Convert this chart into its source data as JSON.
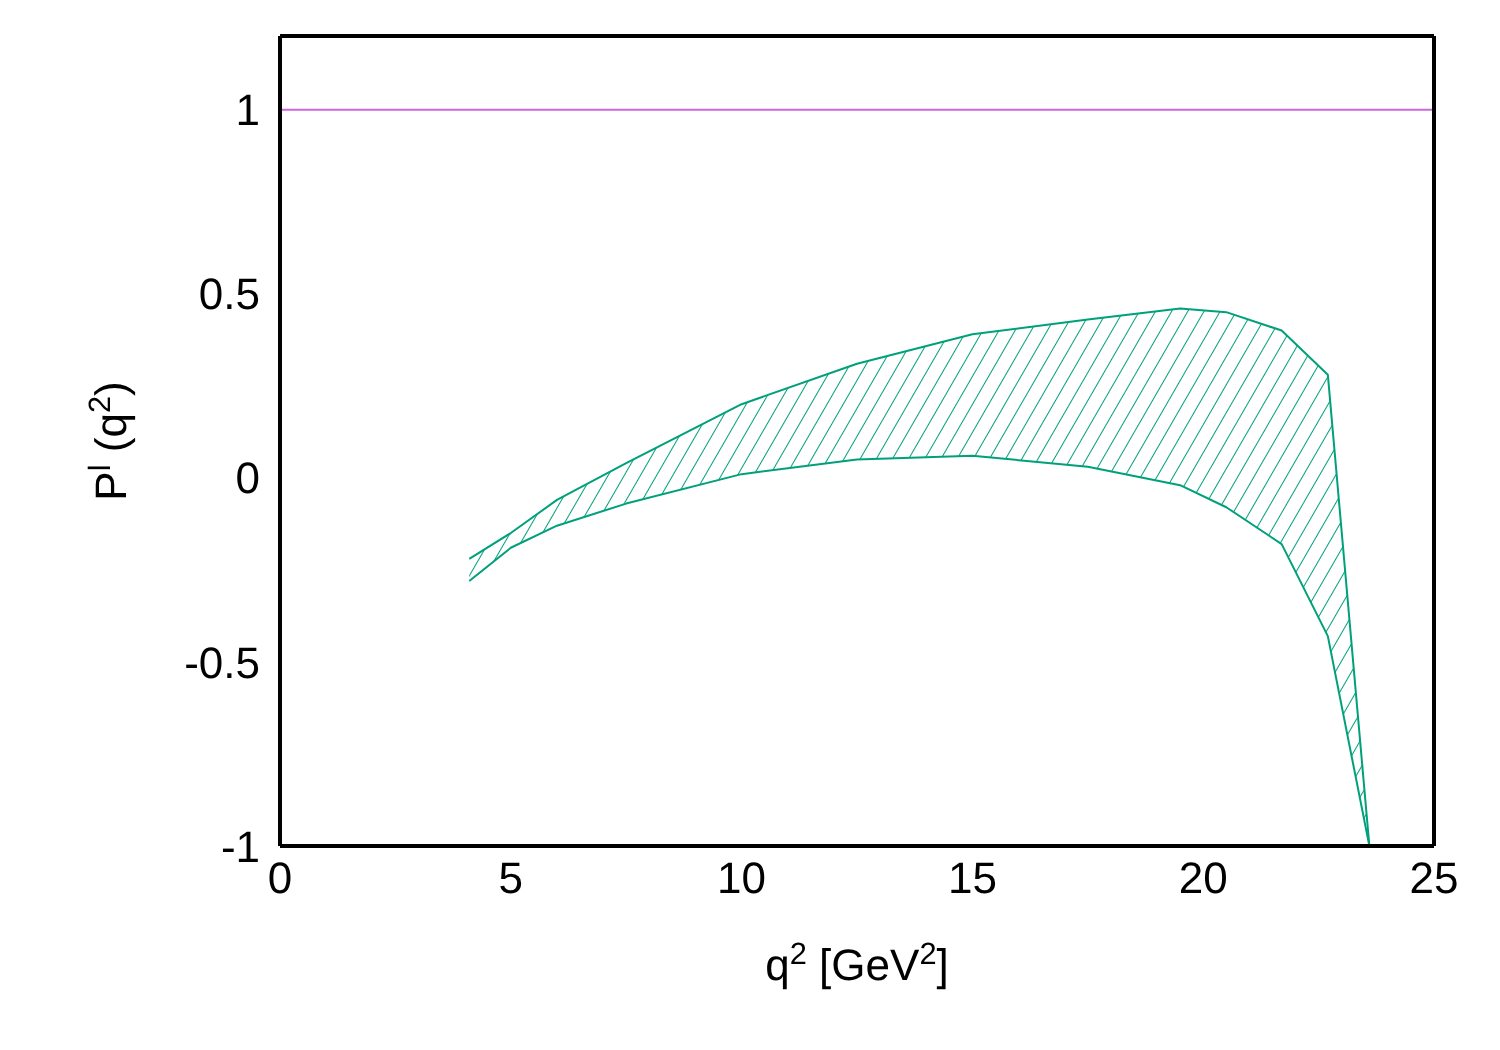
{
  "chart_data": {
    "type": "line",
    "xlabel": "q$^{2}$ [GeV$^{2}$]",
    "ylabel": "P$^{l}$ (q$^{2}$)",
    "xlim": [
      0,
      25
    ],
    "xticks": [
      0,
      5,
      10,
      15,
      20,
      25
    ],
    "ylim": [
      -1,
      1.2
    ],
    "yticks": [
      -1,
      -0.5,
      0,
      0.5,
      1
    ],
    "grid": false,
    "marker": "none",
    "series": [
      {
        "color": "#00a07a",
        "x": [
          4.1,
          5,
          6,
          7.5,
          10,
          12.5,
          15,
          17.5,
          19.5,
          20.5,
          21.7,
          22.7,
          23.6
        ],
        "values": [
          -0.22,
          -0.15,
          -0.06,
          0.04,
          0.2,
          0.31,
          0.39,
          0.43,
          0.46,
          0.45,
          0.4,
          0.28,
          -1
        ]
      },
      {
        "color": "#00a07a",
        "x": [
          4.1,
          5,
          6,
          7.5,
          10,
          12.5,
          15,
          17.5,
          19.5,
          20.5,
          21.7,
          22.7,
          23.6
        ],
        "values": [
          -0.28,
          -0.19,
          -0.13,
          -0.07,
          0.01,
          0.05,
          0.06,
          0.03,
          -0.02,
          -0.08,
          -0.18,
          -0.43,
          -1
        ]
      }
    ],
    "ref_lines": [
      {
        "axis": "y",
        "value": 1,
        "color": "#cc66dd"
      }
    ]
  }
}
